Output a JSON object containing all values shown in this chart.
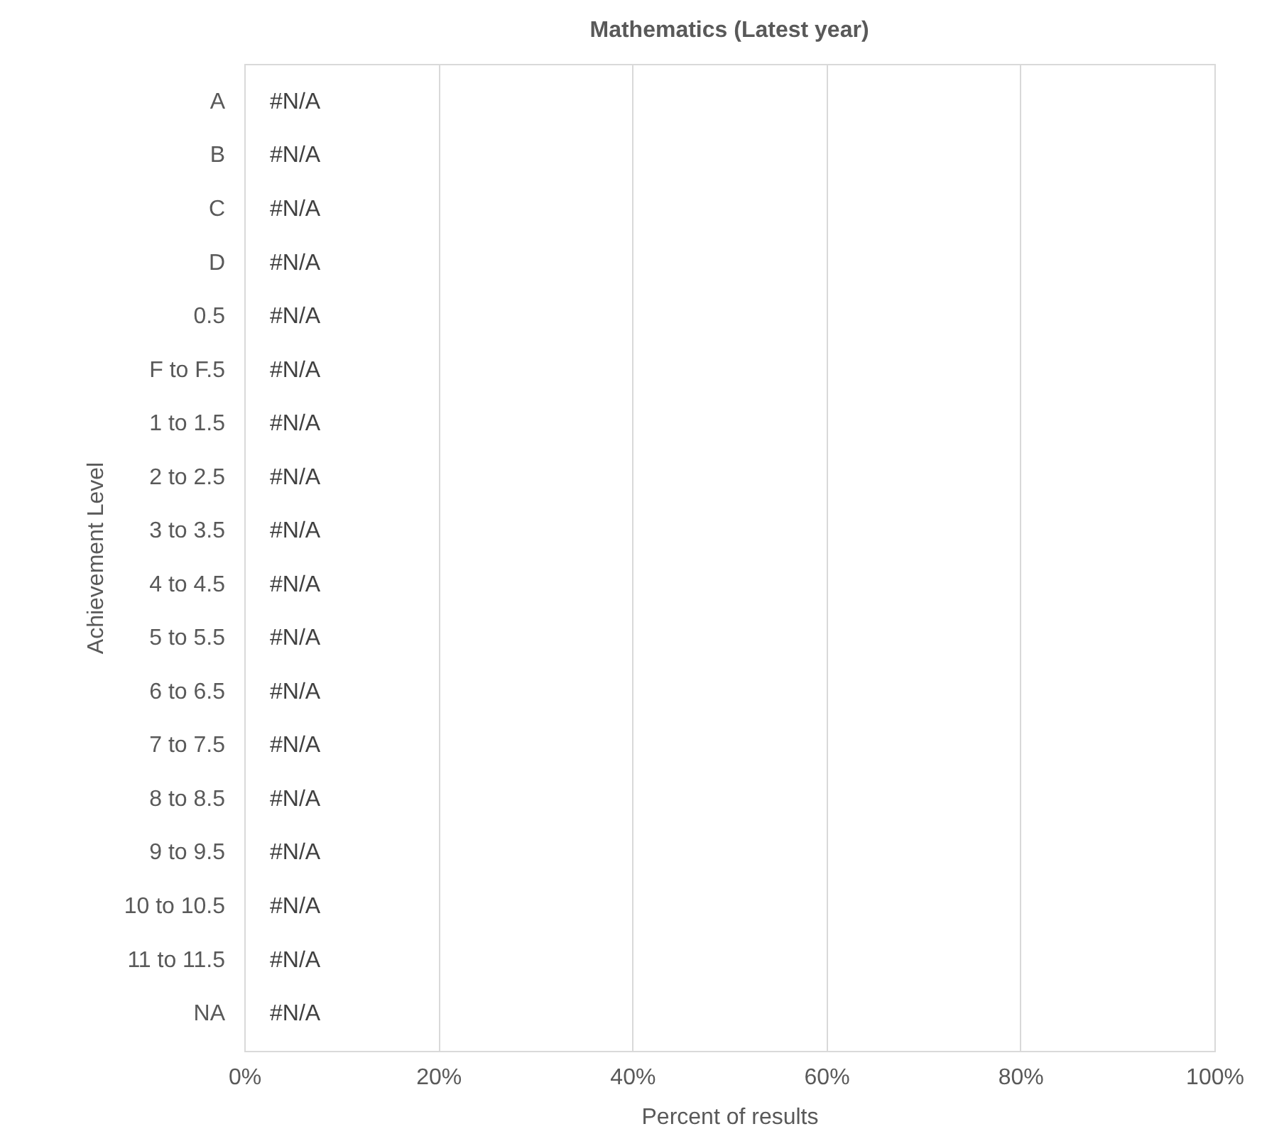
{
  "chart_data": {
    "type": "bar",
    "orientation": "horizontal",
    "title": "Mathematics (Latest year)",
    "xlabel": "Percent of results",
    "ylabel": "Achievement Level",
    "categories": [
      "A",
      "B",
      "C",
      "D",
      "0.5",
      "F to F.5",
      "1 to 1.5",
      "2 to 2.5",
      "3 to 3.5",
      "4 to 4.5",
      "5 to 5.5",
      "6 to 6.5",
      "7 to 7.5",
      "8 to 8.5",
      "9 to 9.5",
      "10 to 10.5",
      "11 to 11.5",
      "NA"
    ],
    "values": [
      null,
      null,
      null,
      null,
      null,
      null,
      null,
      null,
      null,
      null,
      null,
      null,
      null,
      null,
      null,
      null,
      null,
      null
    ],
    "value_labels": [
      "#N/A",
      "#N/A",
      "#N/A",
      "#N/A",
      "#N/A",
      "#N/A",
      "#N/A",
      "#N/A",
      "#N/A",
      "#N/A",
      "#N/A",
      "#N/A",
      "#N/A",
      "#N/A",
      "#N/A",
      "#N/A",
      "#N/A",
      "#N/A"
    ],
    "xlim": [
      0,
      100
    ],
    "xticks": [
      {
        "value": 0,
        "label": "0%"
      },
      {
        "value": 20,
        "label": "20%"
      },
      {
        "value": 40,
        "label": "40%"
      },
      {
        "value": 60,
        "label": "60%"
      },
      {
        "value": 80,
        "label": "80%"
      },
      {
        "value": 100,
        "label": "100%"
      }
    ],
    "grid": "x"
  }
}
